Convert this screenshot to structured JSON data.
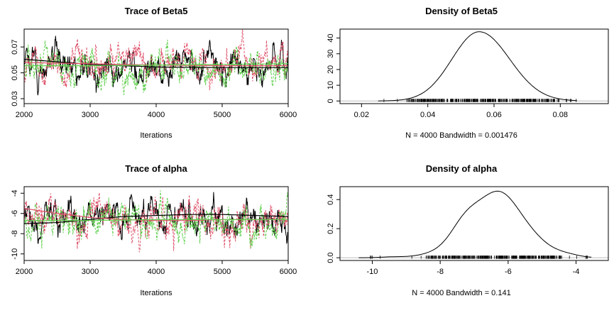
{
  "chart_data": [
    {
      "type": "line",
      "title": "Trace of Beta5",
      "xlabel": "Iterations",
      "ylabel": "",
      "xlim": [
        2000,
        6000
      ],
      "ylim": [
        0.02617,
        0.08383
      ],
      "x_ticks": [
        2000,
        3000,
        4000,
        5000,
        6000
      ],
      "y_ticks": [
        0.03,
        0.05,
        0.07
      ],
      "y_tick_labels": [
        "0.03",
        "0.05",
        "0.07"
      ],
      "grid": false,
      "series": [
        {
          "color": "#000000",
          "style": "solid",
          "x_range": [
            2000,
            6000
          ],
          "level": 0.055,
          "spread": 0.0075,
          "smooth": [
            [
              2000,
              0.0605
            ],
            [
              2500,
              0.0585
            ],
            [
              3000,
              0.0565
            ],
            [
              3500,
              0.0555
            ],
            [
              4000,
              0.0545
            ],
            [
              5000,
              0.054
            ],
            [
              6000,
              0.054
            ]
          ]
        },
        {
          "color": "#DF536B",
          "style": "dashed",
          "x_range": [
            2000,
            6000
          ],
          "level": 0.056,
          "spread": 0.0075,
          "smooth": [
            [
              2000,
              0.058
            ],
            [
              3000,
              0.057
            ],
            [
              4000,
              0.056
            ],
            [
              5000,
              0.0555
            ],
            [
              6000,
              0.0555
            ]
          ]
        },
        {
          "color": "#61D04F",
          "style": "dashed",
          "x_range": [
            2000,
            6000
          ],
          "level": 0.055,
          "spread": 0.0075,
          "smooth": [
            [
              2000,
              0.0555
            ],
            [
              3000,
              0.0555
            ],
            [
              4000,
              0.056
            ],
            [
              5000,
              0.0565
            ],
            [
              6000,
              0.057
            ]
          ]
        }
      ]
    },
    {
      "type": "line",
      "title": "Density of Beta5",
      "xlabel": "N = 4000   Bandwidth = 0.001476",
      "ylabel": "",
      "xlim": [
        0.0135,
        0.0945
      ],
      "ylim": [
        -1.68,
        45.68
      ],
      "x_ticks": [
        0.02,
        0.04,
        0.06,
        0.08
      ],
      "x_tick_labels": [
        "0.02",
        "0.04",
        "0.06",
        "0.08"
      ],
      "y_ticks": [
        0,
        10,
        20,
        30,
        40
      ],
      "grid": false,
      "density": {
        "mode": 0.0555,
        "peak": 44,
        "left_spread": 0.0082,
        "right_spread": 0.0092,
        "support": [
          0.025,
          0.085
        ]
      },
      "rug": {
        "from": 0.025,
        "to": 0.085,
        "dense_from": 0.034,
        "dense_to": 0.08
      }
    },
    {
      "type": "line",
      "title": "Trace of alpha",
      "xlabel": "Iterations",
      "ylabel": "",
      "xlim": [
        2000,
        6000
      ],
      "ylim": [
        -10.65,
        -3.35
      ],
      "x_ticks": [
        2000,
        3000,
        4000,
        5000,
        6000
      ],
      "y_ticks": [
        -10,
        -8,
        -6,
        -4
      ],
      "grid": false,
      "series": [
        {
          "color": "#000000",
          "style": "solid",
          "x_range": [
            2000,
            6000
          ],
          "level": -6.5,
          "spread": 0.9,
          "smooth": [
            [
              2000,
              -7.0
            ],
            [
              2500,
              -6.9
            ],
            [
              3000,
              -6.6
            ],
            [
              3500,
              -6.3
            ],
            [
              4000,
              -6.2
            ],
            [
              4500,
              -6.1
            ],
            [
              5000,
              -6.1
            ],
            [
              5500,
              -6.2
            ],
            [
              6000,
              -6.3
            ]
          ]
        },
        {
          "color": "#DF536B",
          "style": "dashed",
          "x_range": [
            2000,
            6000
          ],
          "level": -6.6,
          "spread": 1.1,
          "smooth": [
            [
              2000,
              -5.5
            ],
            [
              2500,
              -6.0
            ],
            [
              3000,
              -6.4
            ],
            [
              3500,
              -6.6
            ],
            [
              4000,
              -6.7
            ],
            [
              4500,
              -6.7
            ],
            [
              5000,
              -6.6
            ],
            [
              6000,
              -6.6
            ]
          ]
        },
        {
          "color": "#61D04F",
          "style": "dashed",
          "x_range": [
            2000,
            6000
          ],
          "level": -6.6,
          "spread": 0.9,
          "smooth": [
            [
              2000,
              -6.7
            ],
            [
              3000,
              -6.7
            ],
            [
              4000,
              -6.6
            ],
            [
              5000,
              -6.6
            ],
            [
              6000,
              -6.6
            ]
          ]
        }
      ]
    },
    {
      "type": "line",
      "title": "Density of alpha",
      "xlabel": "N = 4000   Bandwidth = 0.141",
      "ylabel": "",
      "xlim": [
        -10.95,
        -3.05
      ],
      "ylim": [
        -0.0188,
        0.4888
      ],
      "x_ticks": [
        -10,
        -8,
        -6,
        -4
      ],
      "y_ticks": [
        0.0,
        0.2,
        0.4
      ],
      "y_tick_labels": [
        "0.0",
        "0.2",
        "0.4"
      ],
      "grid": false,
      "density": {
        "mode": -6.3,
        "peak": 0.47,
        "support": [
          -10.4,
          -3.55
        ]
      },
      "rug": {
        "from": -10.4,
        "to": -3.6,
        "dense_from": -8.4,
        "dense_to": -4.4
      }
    }
  ]
}
